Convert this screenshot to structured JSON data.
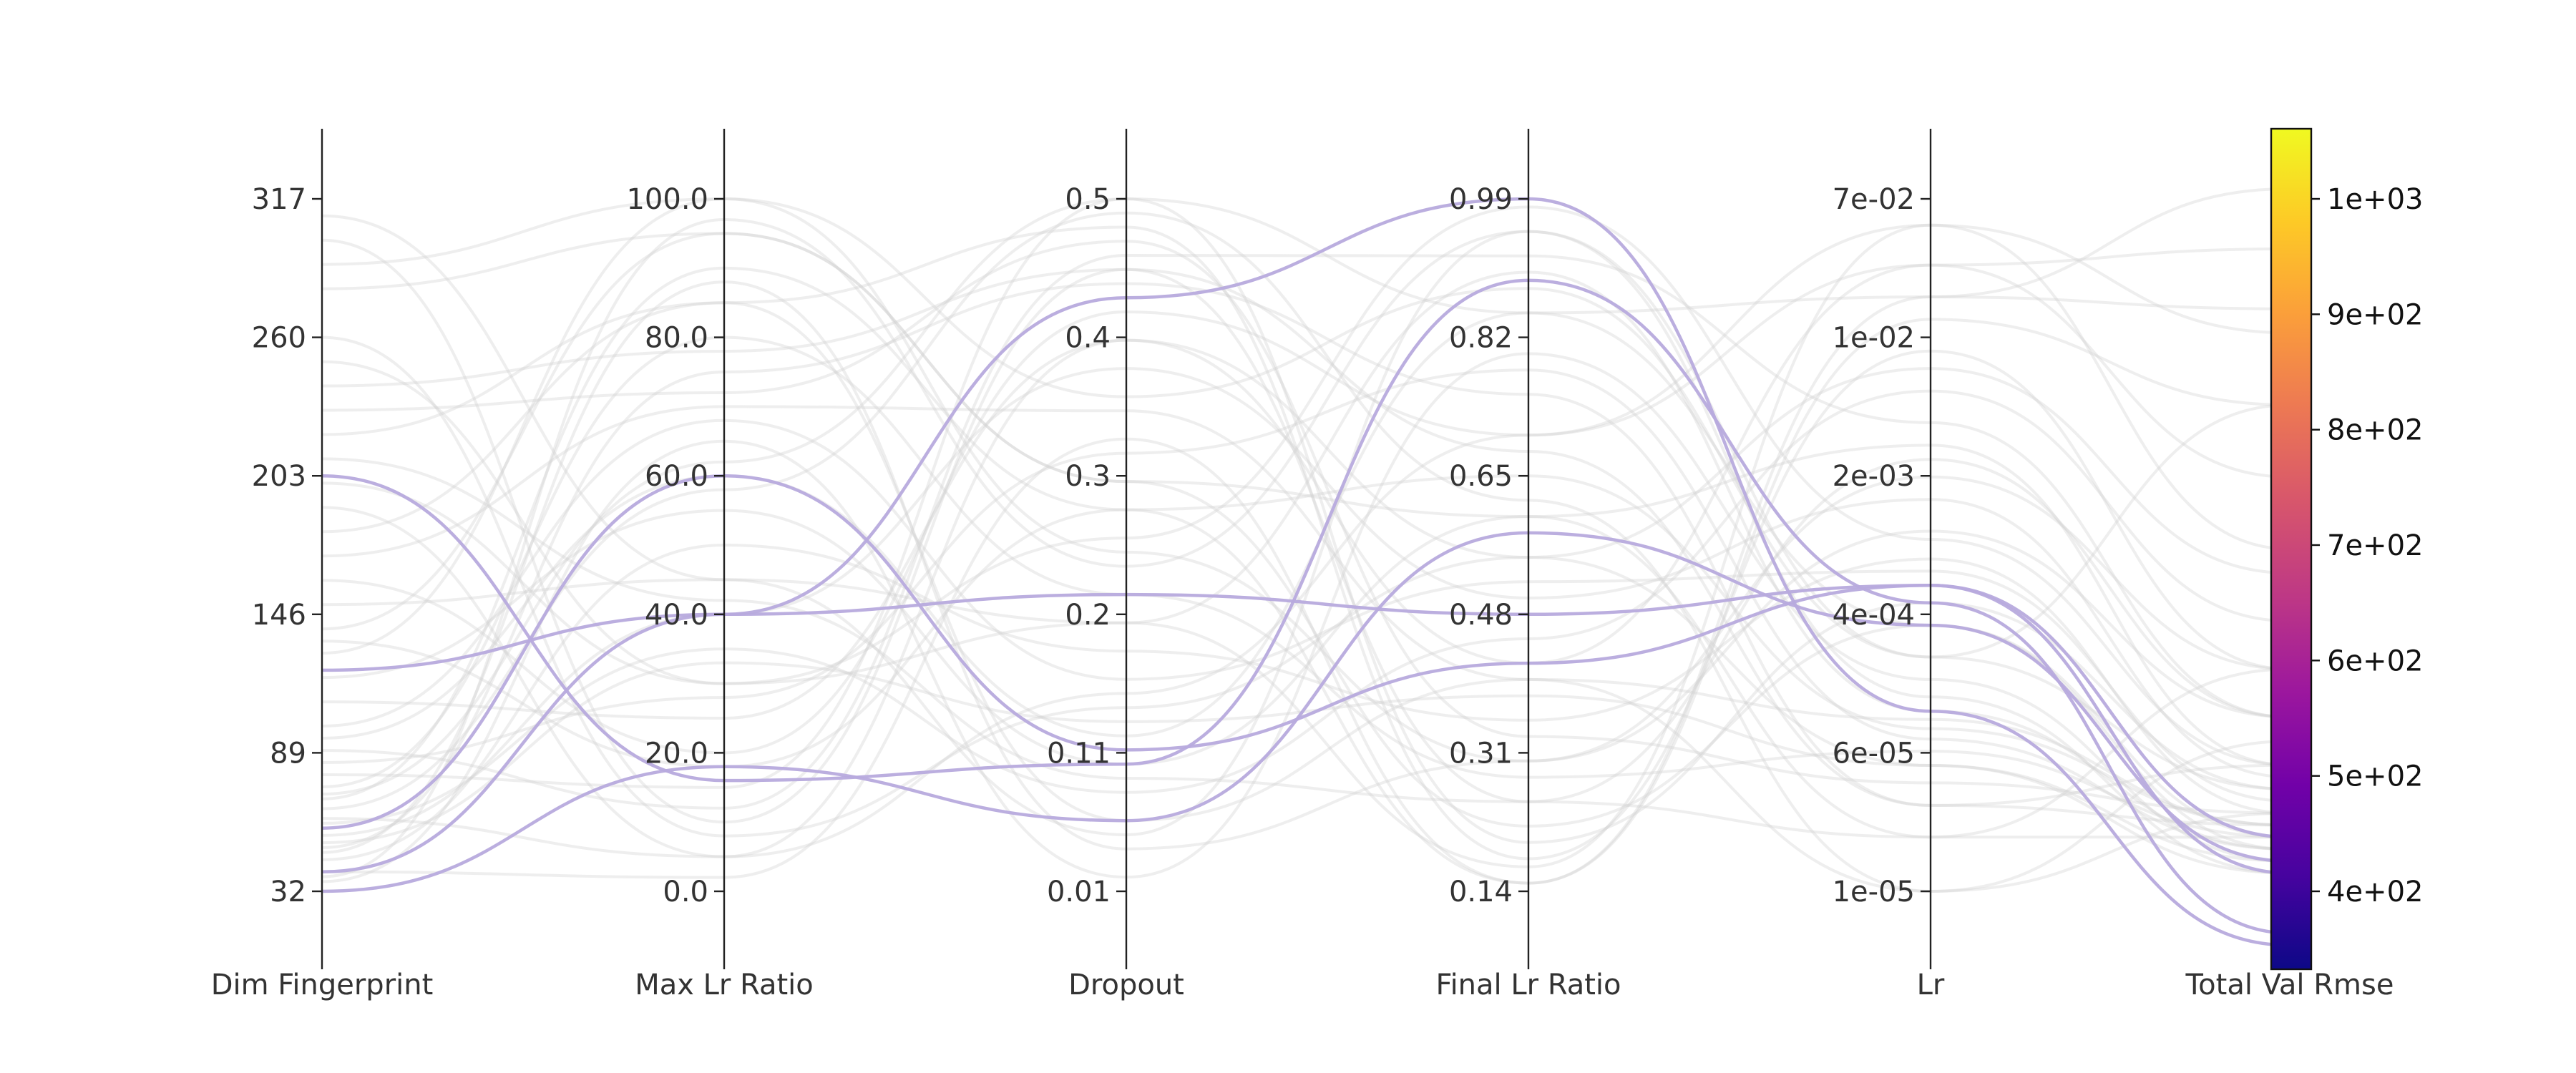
{
  "chart_data": {
    "type": "parallel_coordinates",
    "axes": [
      {
        "label": "Dim Fingerprint",
        "ticks": [
          "32",
          "89",
          "146",
          "203",
          "260",
          "317"
        ]
      },
      {
        "label": "Max Lr Ratio",
        "ticks": [
          "0.0",
          "20.0",
          "40.0",
          "60.0",
          "80.0",
          "100.0"
        ]
      },
      {
        "label": "Dropout",
        "ticks": [
          "0.01",
          "0.11",
          "0.2",
          "0.3",
          "0.4",
          "0.5"
        ]
      },
      {
        "label": "Final Lr Ratio",
        "ticks": [
          "0.14",
          "0.31",
          "0.48",
          "0.65",
          "0.82",
          "0.99"
        ]
      },
      {
        "label": "Lr",
        "ticks": [
          "1e-05",
          "6e-05",
          "4e-04",
          "2e-03",
          "1e-02",
          "7e-02"
        ]
      },
      {
        "label": "Total Val Rmse",
        "ticks": []
      }
    ],
    "colorbar": {
      "labels": [
        "4e+02",
        "5e+02",
        "6e+02",
        "7e+02",
        "8e+02",
        "9e+02",
        "1e+03"
      ],
      "colors": [
        "#0d0887",
        "#46039f",
        "#7201a8",
        "#9c179e",
        "#bd3786",
        "#d8576b",
        "#ed7953",
        "#fb9f3a",
        "#fdca26",
        "#f0f921"
      ]
    },
    "highlight_color": "#b7aadd",
    "background_color": "#d3d3d3",
    "highlighted_trials": [
      {
        "values": [
          203,
          16,
          0.1,
          0.89,
          0.0004,
          380
        ]
      },
      {
        "values": [
          40,
          40,
          0.43,
          0.99,
          0.0001,
          370
        ]
      },
      {
        "values": [
          123,
          40,
          0.22,
          0.48,
          0.0005,
          430
        ]
      },
      {
        "values": [
          32,
          18,
          0.06,
          0.58,
          0.0003,
          440
        ]
      },
      {
        "values": [
          58,
          60,
          0.11,
          0.42,
          0.0005,
          460
        ]
      }
    ],
    "background_trials": [
      {
        "values": [
          300,
          10,
          0.45,
          0.25,
          2e-05,
          460
        ]
      },
      {
        "values": [
          280,
          95,
          0.3,
          0.6,
          0.003,
          520
        ]
      },
      {
        "values": [
          250,
          30,
          0.2,
          0.9,
          0.0001,
          450
        ]
      },
      {
        "values": [
          220,
          85,
          0.48,
          0.18,
          0.01,
          600
        ]
      },
      {
        "values": [
          190,
          5,
          0.15,
          0.7,
          0.05,
          700
        ]
      },
      {
        "values": [
          170,
          70,
          0.35,
          0.4,
          1e-05,
          480
        ]
      },
      {
        "values": [
          150,
          45,
          0.05,
          0.95,
          0.0002,
          820
        ]
      },
      {
        "values": [
          130,
          100,
          0.25,
          0.3,
          0.001,
          560
        ]
      },
      {
        "values": [
          110,
          25,
          0.4,
          0.55,
          5e-05,
          430
        ]
      },
      {
        "values": [
          95,
          60,
          0.12,
          0.85,
          0.02,
          900
        ]
      },
      {
        "values": [
          80,
          15,
          0.5,
          0.2,
          0.0004,
          500
        ]
      },
      {
        "values": [
          70,
          90,
          0.28,
          0.65,
          8e-05,
          470
        ]
      },
      {
        "values": [
          60,
          35,
          0.08,
          0.45,
          0.006,
          640
        ]
      },
      {
        "values": [
          50,
          75,
          0.44,
          0.75,
          3e-05,
          520
        ]
      },
      {
        "values": [
          45,
          50,
          0.18,
          0.35,
          0.0007,
          480
        ]
      },
      {
        "values": [
          40,
          2,
          0.33,
          0.15,
          0.02,
          1000
        ]
      },
      {
        "values": [
          36,
          65,
          0.02,
          0.8,
          0.00015,
          440
        ]
      },
      {
        "values": [
          55,
          40,
          0.38,
          0.5,
          0.0015,
          510
        ]
      },
      {
        "values": [
          75,
          80,
          0.22,
          0.28,
          6e-05,
          460
        ]
      },
      {
        "values": [
          90,
          12,
          0.46,
          0.92,
          0.004,
          560
        ]
      },
      {
        "values": [
          120,
          55,
          0.1,
          0.6,
          2e-05,
          600
        ]
      },
      {
        "values": [
          140,
          95,
          0.3,
          0.22,
          0.0003,
          450
        ]
      },
      {
        "values": [
          160,
          20,
          0.42,
          0.7,
          0.03,
          950
        ]
      },
      {
        "values": [
          180,
          85,
          0.06,
          0.4,
          9e-05,
          470
        ]
      },
      {
        "values": [
          200,
          30,
          0.26,
          0.98,
          0.0009,
          520
        ]
      },
      {
        "values": [
          230,
          72,
          0.47,
          0.33,
          4e-05,
          480
        ]
      },
      {
        "values": [
          260,
          8,
          0.14,
          0.55,
          0.008,
          680
        ]
      },
      {
        "values": [
          290,
          100,
          0.36,
          0.88,
          0.0002,
          500
        ]
      },
      {
        "values": [
          310,
          45,
          0.2,
          0.17,
          0.05,
          880
        ]
      },
      {
        "values": [
          66,
          58,
          0.49,
          0.62,
          1e-05,
          540
        ]
      },
      {
        "values": [
          48,
          88,
          0.04,
          0.3,
          0.002,
          600
        ]
      },
      {
        "values": [
          85,
          28,
          0.32,
          0.78,
          7e-05,
          450
        ]
      },
      {
        "values": [
          100,
          68,
          0.16,
          0.52,
          0.0006,
          490
        ]
      },
      {
        "values": [
          62,
          5,
          0.4,
          0.42,
          0.03,
          760
        ]
      },
      {
        "values": [
          38,
          97,
          0.24,
          0.95,
          0.00012,
          430
        ]
      },
      {
        "values": [
          210,
          42,
          0.09,
          0.25,
          0.0025,
          560
        ]
      },
      {
        "values": [
          240,
          78,
          0.45,
          0.68,
          3e-05,
          470
        ]
      },
      {
        "values": [
          135,
          18,
          0.28,
          0.15,
          0.015,
          820
        ]
      },
      {
        "values": [
          72,
          62,
          0.5,
          0.85,
          0.0003,
          460
        ]
      },
      {
        "values": [
          52,
          33,
          0.13,
          0.38,
          5e-05,
          440
        ]
      }
    ]
  }
}
